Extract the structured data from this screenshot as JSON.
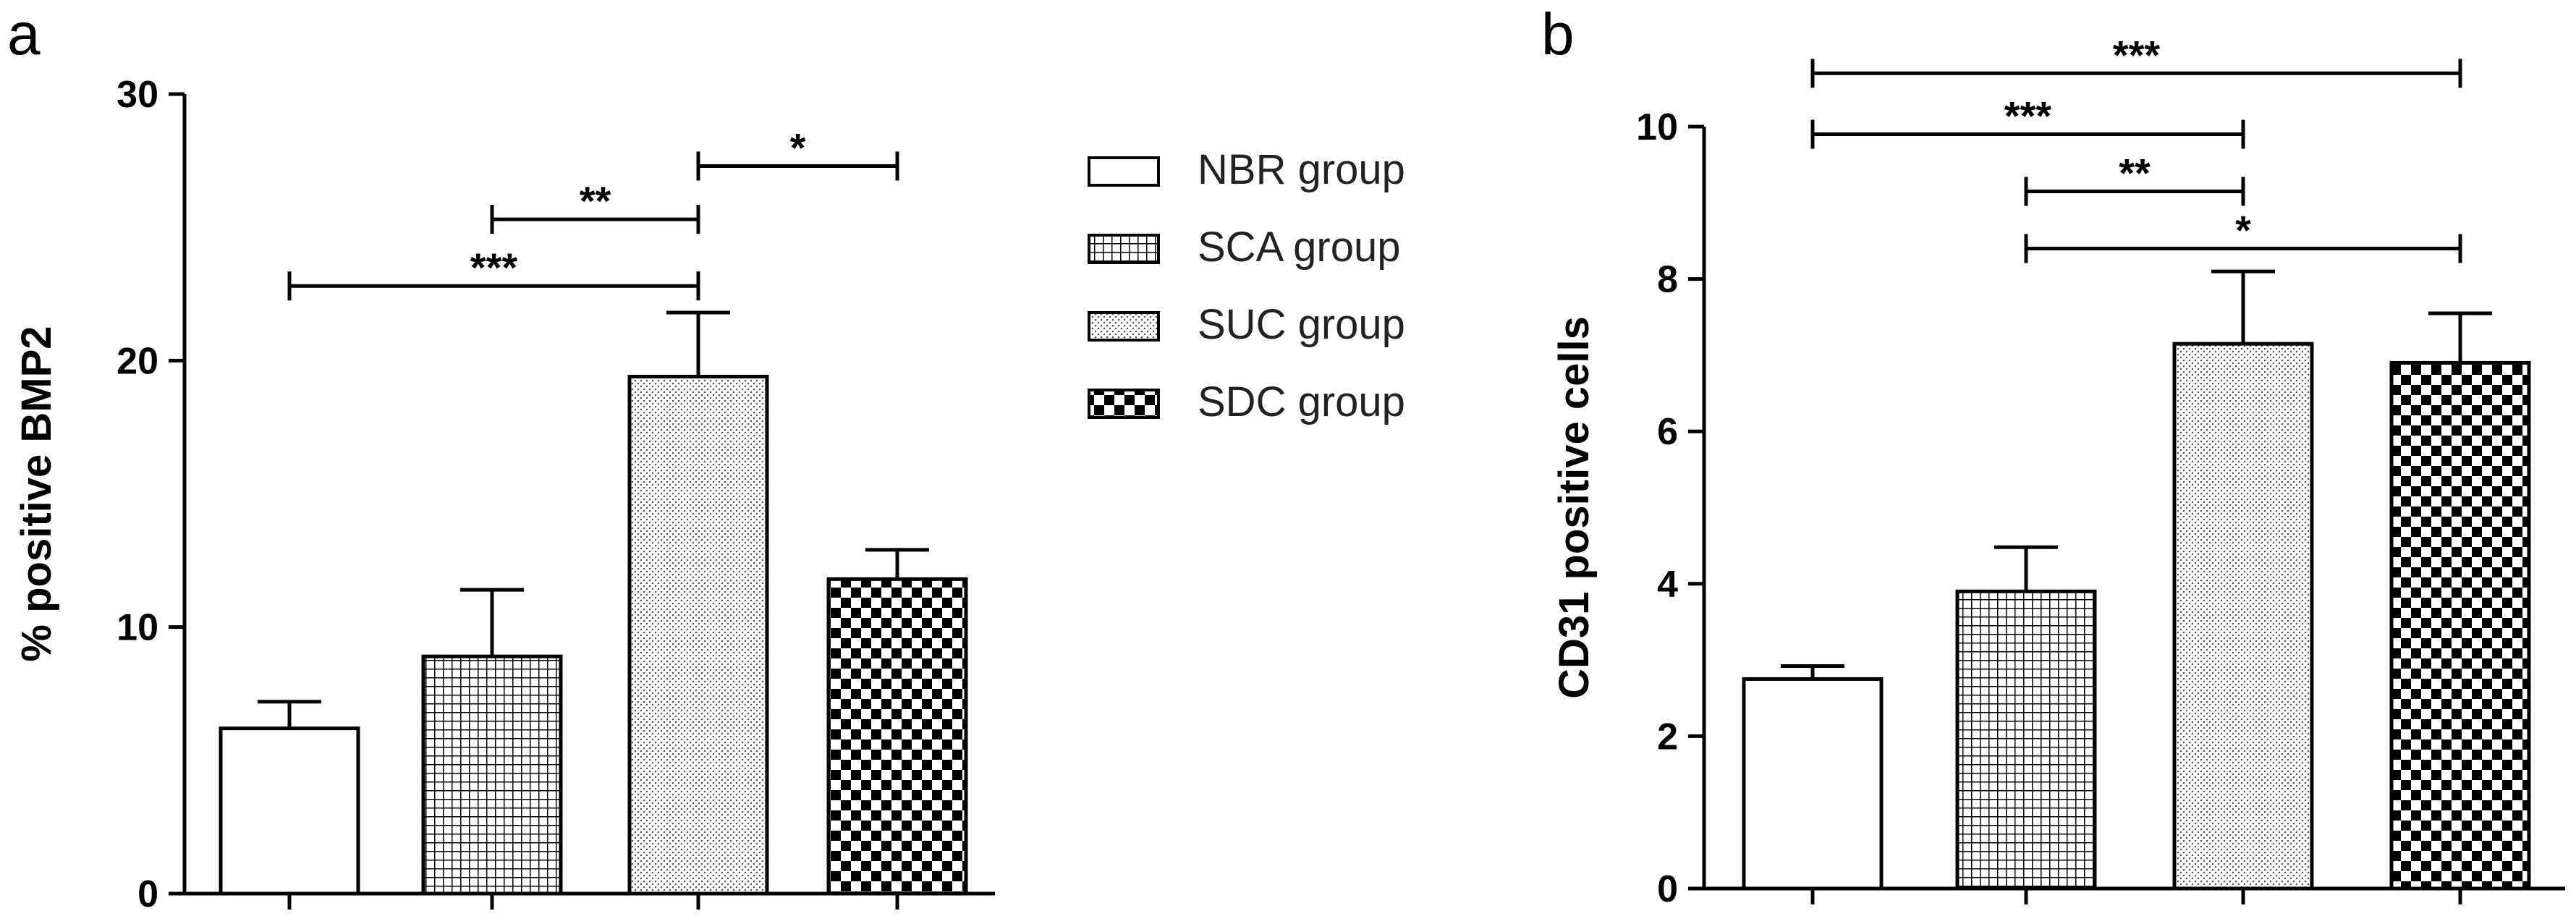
{
  "legend": [
    {
      "label": "NBR group",
      "pattern": "none"
    },
    {
      "label": "SCA group",
      "pattern": "grid"
    },
    {
      "label": "SUC group",
      "pattern": "dots"
    },
    {
      "label": "SDC group",
      "pattern": "checker"
    }
  ],
  "chart_data": [
    {
      "type": "bar",
      "panel": "a",
      "ylabel": "% positive BMP2",
      "ylim": [
        0,
        30
      ],
      "yticks": [
        0,
        10,
        20,
        30
      ],
      "categories": [
        "NBR group",
        "SCA group",
        "SUC group",
        "SDC group"
      ],
      "values": [
        6.2,
        8.9,
        19.4,
        11.8
      ],
      "errors": [
        1.0,
        2.5,
        2.4,
        1.1
      ],
      "significance": [
        {
          "from": 0,
          "to": 2,
          "label": "***",
          "y": 22.8
        },
        {
          "from": 1,
          "to": 2,
          "label": "**",
          "y": 25.3
        },
        {
          "from": 2,
          "to": 3,
          "label": "*",
          "y": 27.3
        }
      ],
      "grid": false,
      "legend_position": "right"
    },
    {
      "type": "bar",
      "panel": "b",
      "ylabel": "CD31 positive cells",
      "ylim": [
        0,
        10
      ],
      "yticks": [
        0,
        2,
        4,
        6,
        8,
        10
      ],
      "categories": [
        "NBR group",
        "SCA group",
        "SUC group",
        "SDC group"
      ],
      "values": [
        2.75,
        3.9,
        7.15,
        6.9
      ],
      "errors": [
        0.17,
        0.58,
        0.95,
        0.65
      ],
      "significance": [
        {
          "from": 0,
          "to": 3,
          "label": "***",
          "y": 10.7
        },
        {
          "from": 0,
          "to": 2,
          "label": "***",
          "y": 9.9
        },
        {
          "from": 1,
          "to": 2,
          "label": "**",
          "y": 9.15
        },
        {
          "from": 1,
          "to": 3,
          "label": "*",
          "y": 8.4
        }
      ],
      "grid": false
    }
  ]
}
